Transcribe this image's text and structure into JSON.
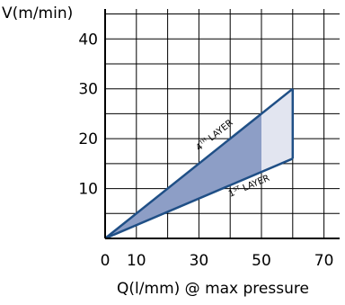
{
  "chart_data": {
    "type": "area",
    "ylabel": "V(m/min)",
    "xlabel": "Q(l/mm) @ max pressure",
    "xlim": [
      0,
      75
    ],
    "ylim": [
      0,
      46
    ],
    "x_ticks": [
      "0",
      "10",
      "30",
      "50",
      "70"
    ],
    "x_tick_values": [
      0,
      10,
      30,
      50,
      70
    ],
    "y_ticks": [
      "10",
      "20",
      "30",
      "40"
    ],
    "y_tick_values": [
      10,
      20,
      30,
      40
    ],
    "grid": true,
    "series": [
      {
        "x": [
          0,
          60
        ],
        "y": [
          0,
          30
        ]
      },
      {
        "x": [
          0,
          60
        ],
        "y": [
          0,
          16
        ]
      }
    ],
    "closing_segment": {
      "x": [
        60,
        60
      ],
      "y": [
        16,
        30
      ]
    },
    "dark_fill_x_max": 50,
    "labels": {
      "upper": {
        "sup": "TH",
        "number": "4",
        "text": " LAYER",
        "at_x": 30,
        "at_y": 17.5
      },
      "lower": {
        "sup": "ST",
        "number": "1",
        "text": " LAYER",
        "at_x": 40,
        "at_y": 8.3
      }
    },
    "colors": {
      "line": "#1f4f86",
      "dark_fill": "#8d9ec6",
      "light_fill": "#e2e5f0",
      "grid": "#000000"
    }
  }
}
